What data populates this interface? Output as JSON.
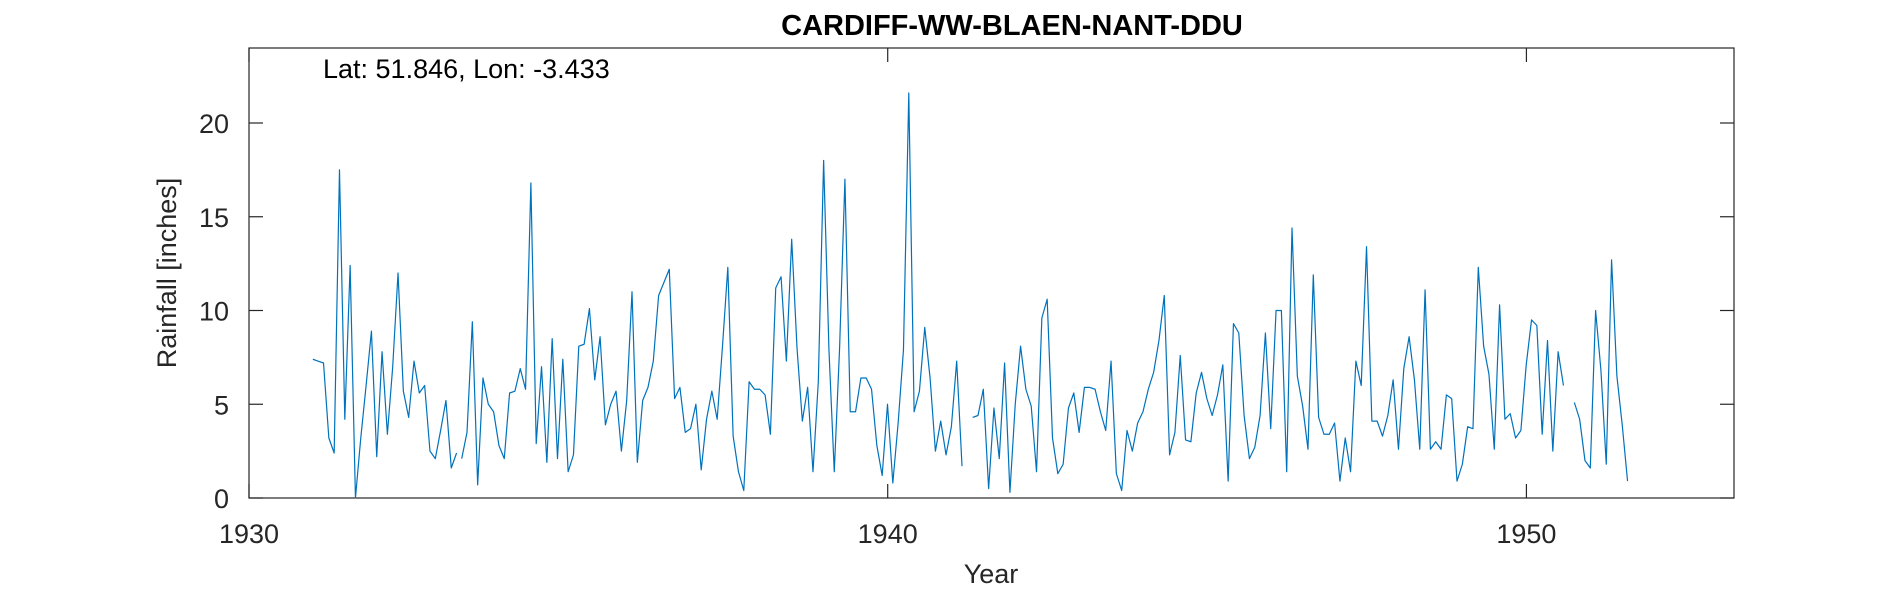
{
  "chart_data": {
    "type": "line",
    "title": "CARDIFF-WW-BLAEN-NANT-DDU",
    "annotation": "Lat: 51.846, Lon: -3.433",
    "xlabel": "Year",
    "ylabel": "Rainfall [inches]",
    "xlim": [
      1930,
      1953.25
    ],
    "ylim": [
      0,
      24
    ],
    "xticks": [
      1930,
      1940,
      1950
    ],
    "xtick_labels": [
      "1930",
      "1940",
      "1950"
    ],
    "yticks": [
      0,
      5,
      10,
      15,
      20
    ],
    "ytick_labels": [
      "0",
      "5",
      "10",
      "15",
      "20"
    ],
    "series_color": "#0072BD",
    "series": [
      {
        "name": "Monthly rainfall",
        "segments": [
          {
            "start": 1931.0,
            "step": 0.0833333,
            "values": [
              7.4,
              7.3,
              7.2,
              3.2,
              2.4,
              17.5,
              4.2,
              12.4,
              0.0,
              3.2,
              6.0,
              8.9,
              2.2,
              7.8,
              3.4,
              7.0,
              12.0,
              5.7,
              4.3,
              7.3,
              5.6,
              6.0,
              2.5,
              2.1,
              3.6,
              5.2,
              1.6,
              2.4
            ]
          },
          {
            "start": 1933.33,
            "step": 0.0833333,
            "values": [
              2.1,
              3.5,
              9.4,
              0.7,
              6.4,
              5.0,
              4.6,
              2.8,
              2.1,
              5.6,
              5.7,
              6.9,
              5.8,
              16.8,
              2.9,
              7.0,
              1.9,
              8.5,
              2.1,
              7.4,
              1.4,
              2.3,
              8.1,
              8.2,
              10.1,
              6.3,
              8.6,
              3.9,
              5.0,
              5.7,
              2.5,
              5.2,
              11.0,
              1.9,
              5.2,
              5.9,
              7.3,
              10.8,
              11.5,
              12.2,
              5.3,
              5.9,
              3.5,
              3.7,
              5.0,
              1.5,
              4.2,
              5.7,
              4.2,
              8.1,
              12.3,
              3.3,
              1.4,
              0.4,
              6.2,
              5.8,
              5.8,
              5.5,
              3.4,
              11.2,
              11.8,
              7.3,
              13.8,
              8.0,
              4.1,
              5.9,
              1.4,
              6.2,
              18.0,
              7.9,
              1.4,
              8.0,
              17.0,
              4.6,
              4.6,
              6.4,
              6.4,
              5.8,
              2.8,
              1.2,
              5.0,
              0.8,
              4.0,
              7.9,
              21.6,
              4.6,
              5.7,
              9.1,
              6.4,
              2.5,
              4.1,
              2.3,
              3.8,
              7.3,
              1.7
            ]
          },
          {
            "start": 1941.33,
            "step": 0.0833333,
            "values": [
              4.3,
              4.4,
              5.8,
              0.5,
              4.8,
              2.1,
              7.2,
              0.3,
              5.0,
              8.1,
              5.8,
              4.9,
              1.4,
              9.6,
              10.6,
              3.2,
              1.3,
              1.8,
              4.8,
              5.6,
              3.5,
              5.9,
              5.9,
              5.8,
              4.6,
              3.6,
              7.3,
              1.3,
              0.4,
              3.6,
              2.5,
              4.0,
              4.6,
              5.8,
              6.7,
              8.4,
              10.8,
              2.3,
              3.5,
              7.6,
              3.1,
              3.0,
              5.6,
              6.7,
              5.3,
              4.4,
              5.5,
              7.1,
              0.9,
              9.3,
              8.8,
              4.4,
              2.1,
              2.7,
              4.4,
              8.8,
              3.7,
              10.0,
              10.0,
              1.4,
              14.4,
              6.5,
              4.9,
              2.6,
              11.9,
              4.3,
              3.4,
              3.4,
              4.0,
              0.9,
              3.2,
              1.4,
              7.3,
              6.0,
              13.4,
              4.1,
              4.1,
              3.3,
              4.4,
              6.3,
              2.6,
              6.9,
              8.6,
              6.3,
              2.6,
              11.1,
              2.6,
              3.0,
              2.6,
              5.5,
              5.3,
              0.9,
              1.8,
              3.8,
              3.7,
              12.3,
              8.1,
              6.6,
              2.6,
              10.3,
              4.2,
              4.5,
              3.2,
              3.6,
              7.1,
              9.5,
              9.2,
              3.4,
              8.4,
              2.5,
              7.8,
              6.0
            ]
          },
          {
            "start": 1950.75,
            "step": 0.0833333,
            "values": [
              5.1,
              4.2,
              2.0,
              1.6,
              10.0,
              6.8,
              1.8,
              12.7,
              6.5,
              3.9,
              0.9
            ]
          }
        ]
      }
    ]
  }
}
